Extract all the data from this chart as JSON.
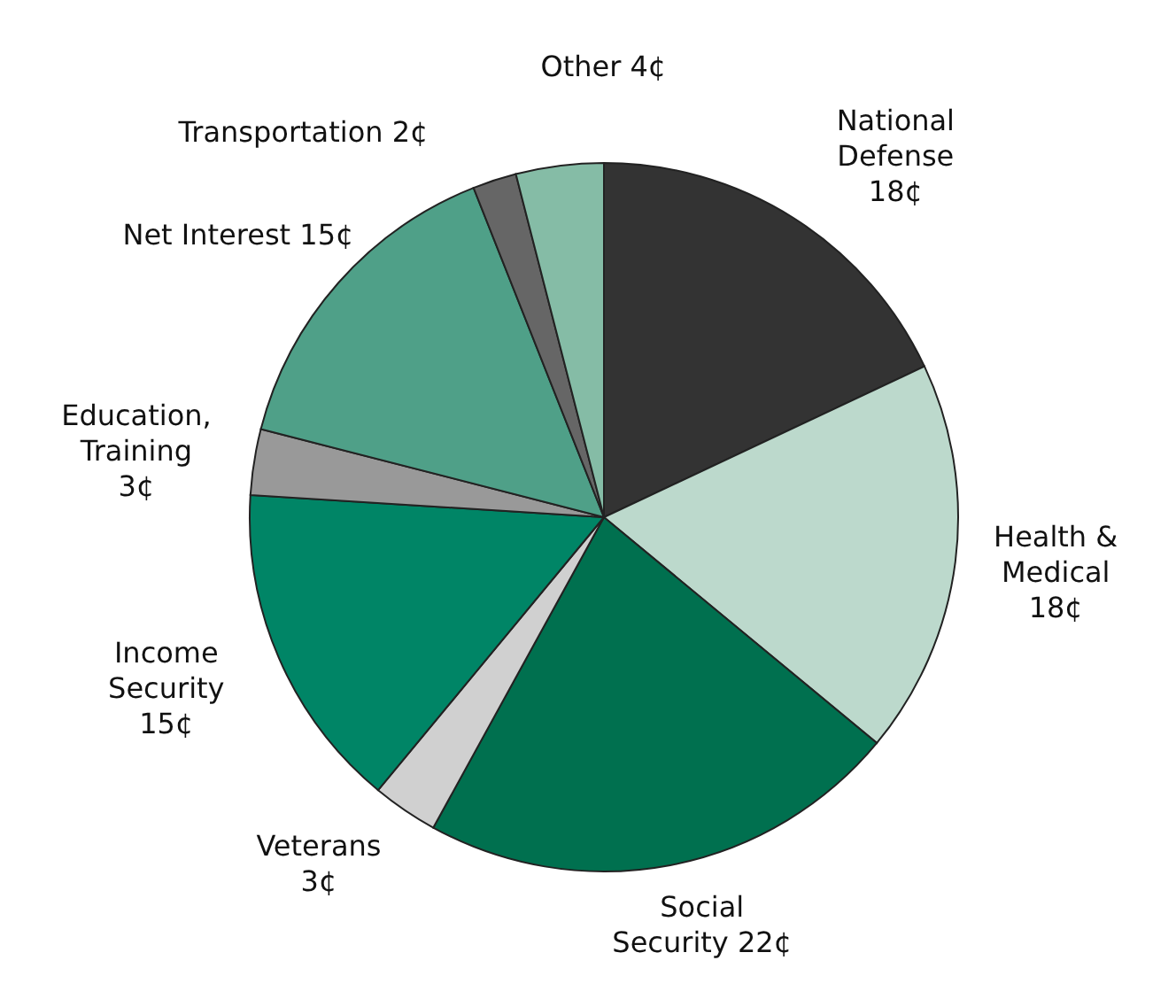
{
  "chart_data": {
    "type": "pie",
    "categories": [
      "National\nDefense",
      "Health &\nMedical",
      "Social\nSecurity",
      "Veterans",
      "Income\nSecurity",
      "Education,\nTraining",
      "Net Interest",
      "Transportation",
      "Other"
    ],
    "values": [
      18,
      18,
      22,
      3,
      15,
      3,
      15,
      2,
      4
    ],
    "value_labels": [
      "18¢",
      "18¢",
      "22¢",
      "3¢",
      "15¢",
      "3¢",
      "15¢",
      "2¢",
      "4¢"
    ],
    "colors": [
      "#333333",
      "#bcd9cc",
      "#00704f",
      "#d0d0d0",
      "#008566",
      "#999999",
      "#4fa088",
      "#666666",
      "#85bca6"
    ]
  }
}
